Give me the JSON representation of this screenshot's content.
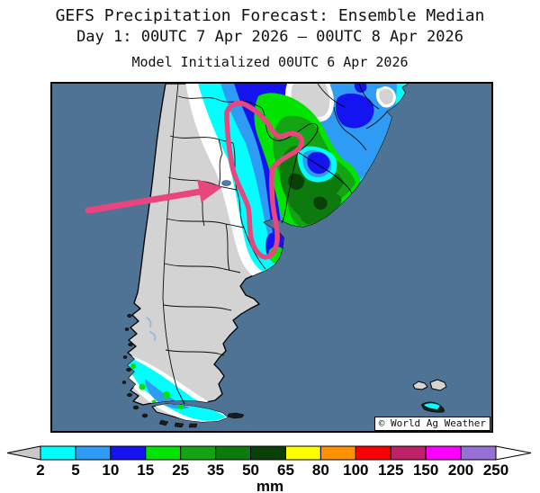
{
  "header": {
    "title": "GEFS Precipitation Forecast: Ensemble Median",
    "subtitle": "Day 1: 00UTC 7 Apr 2026 — 00UTC 8 Apr 2026",
    "init_line": "Model Initialized 00UTC 6 Apr 2026"
  },
  "map": {
    "watermark": "© World Ag Weather"
  },
  "colorbar": {
    "unit": "mm",
    "tick_labels": [
      "2",
      "5",
      "10",
      "15",
      "25",
      "35",
      "50",
      "65",
      "80",
      "100",
      "125",
      "150",
      "200",
      "250"
    ],
    "segment_colors": [
      "#00FFFF",
      "#2E9CF5",
      "#1414F0",
      "#00E400",
      "#13A413",
      "#0C7A0C",
      "#084008",
      "#FFFF00",
      "#FF9000",
      "#FA0000",
      "#C02166",
      "#FF00FF",
      "#9670D6"
    ],
    "underflow_color": "#C9C9C9",
    "overflow_color": "#FFFFFF"
  },
  "colors": {
    "ocean": "#4E7394",
    "land": "#D3D3D3",
    "border": "#000000",
    "annotation": "#E9457F",
    "trace_white": "#FFFFFF",
    "lake": "#4A7FB5"
  }
}
